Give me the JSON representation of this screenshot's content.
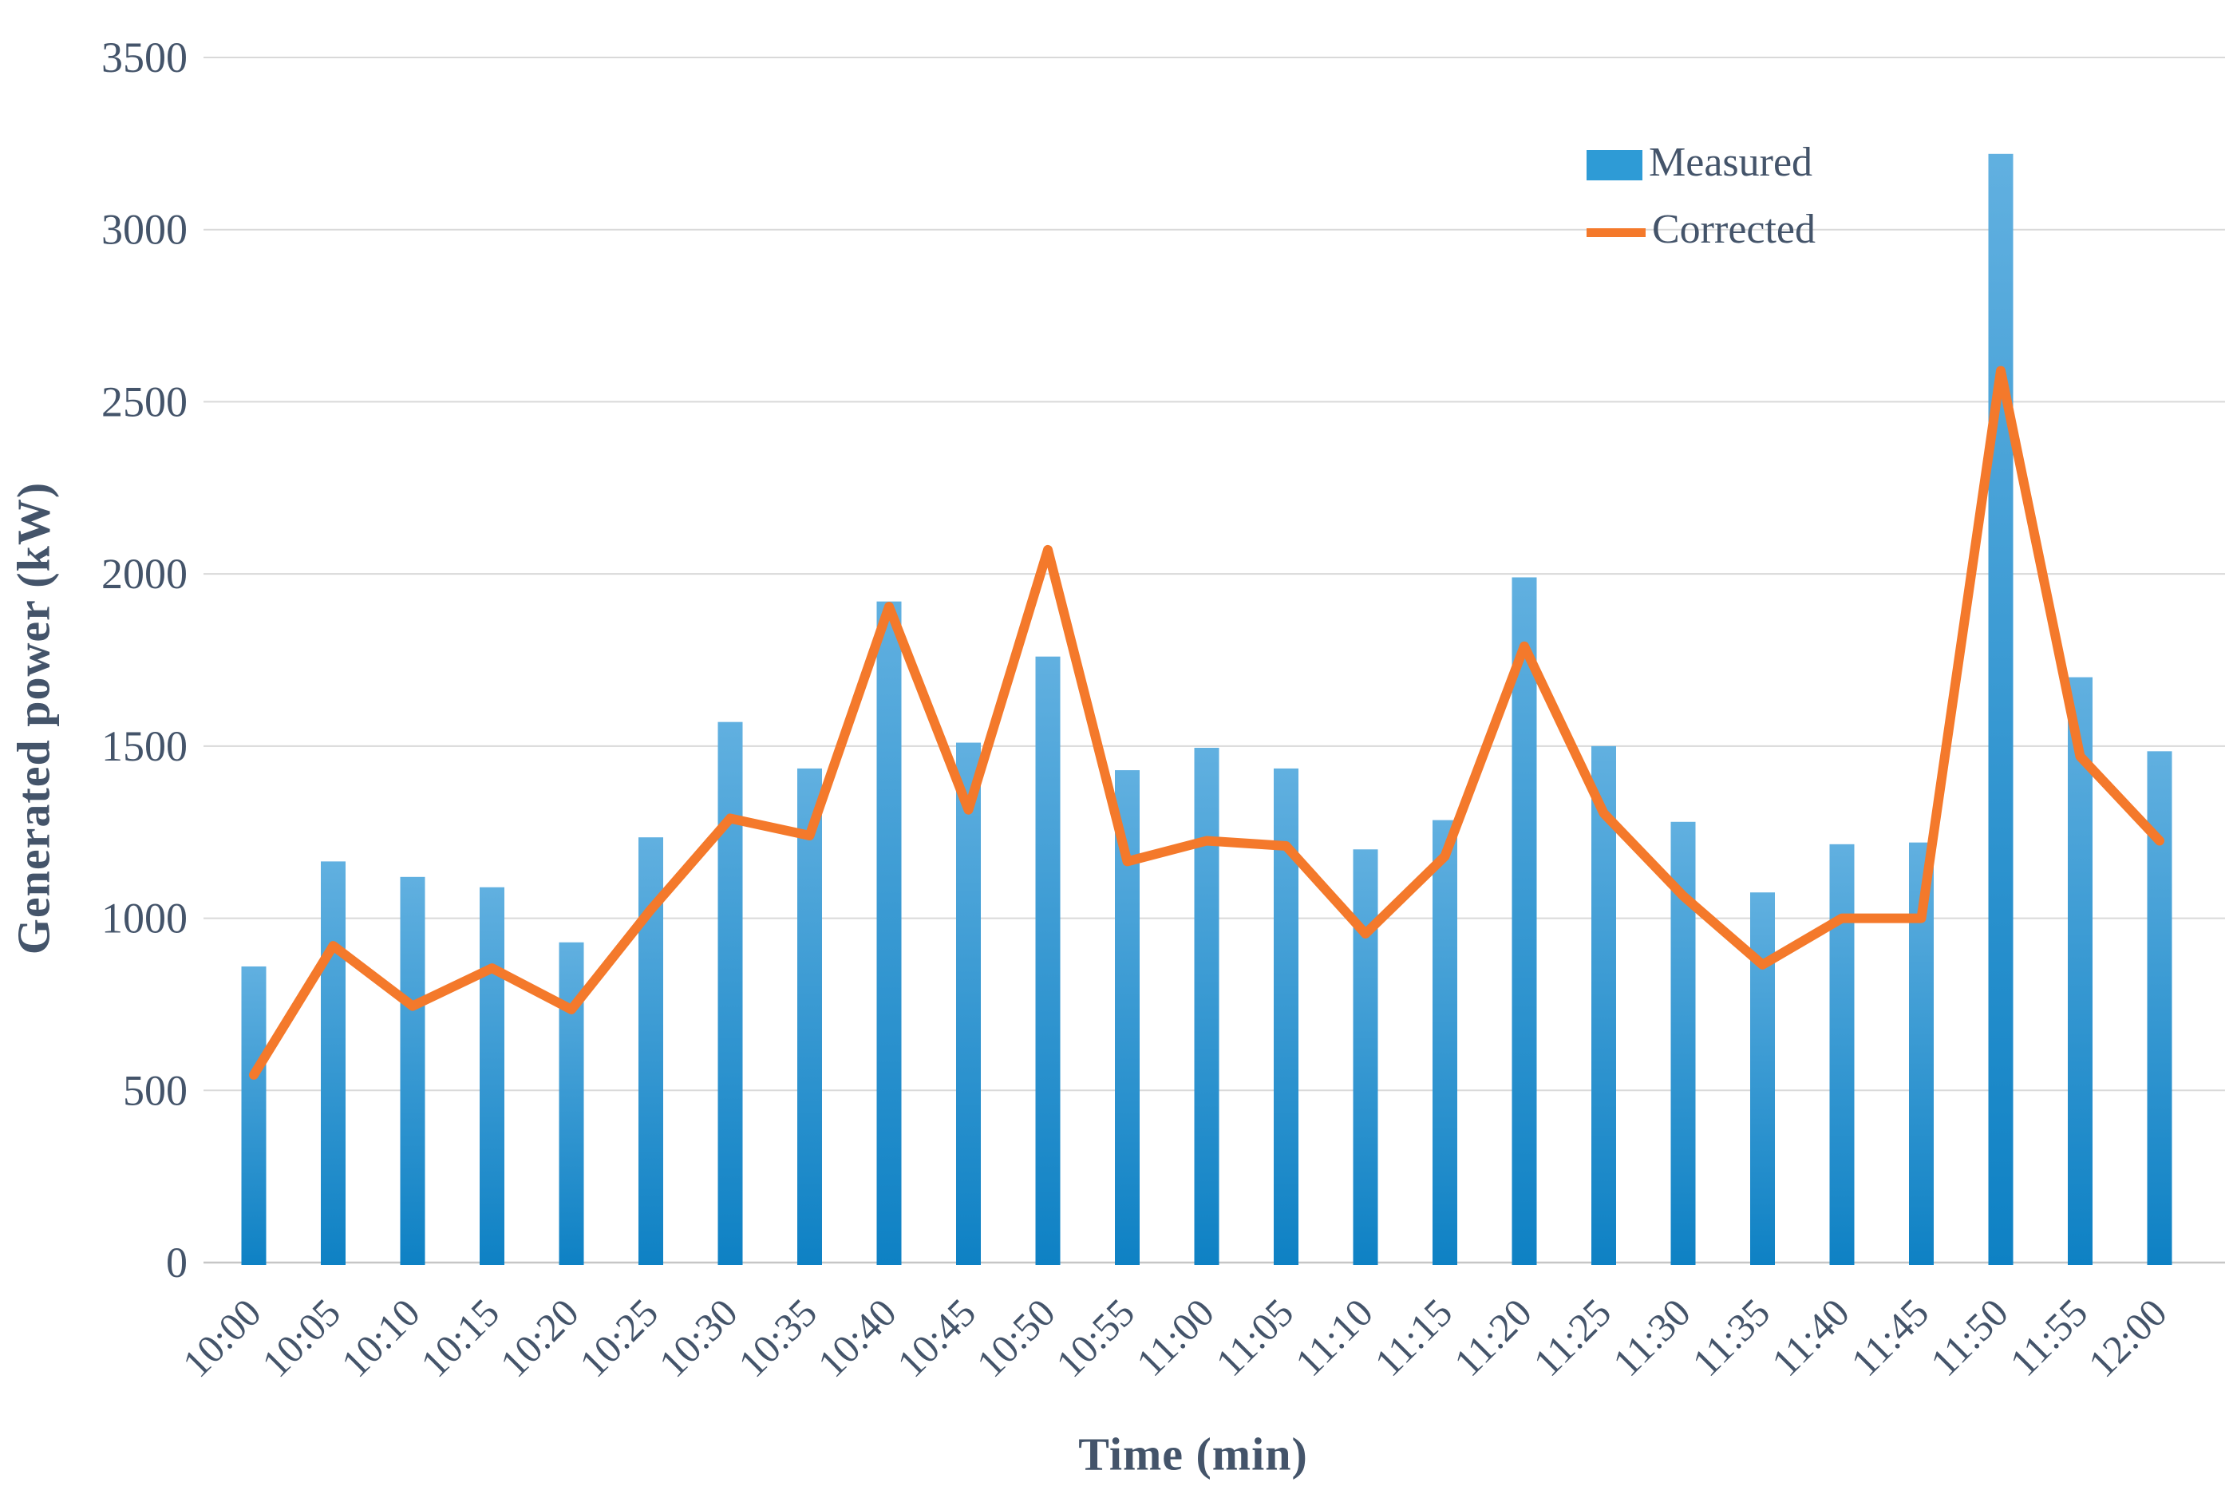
{
  "chart_data": {
    "type": "bar",
    "title": "",
    "xlabel": "Time (min)",
    "ylabel": "Generated power (kW)",
    "categories": [
      "10:00",
      "10:05",
      "10:10",
      "10:15",
      "10:20",
      "10:25",
      "10:30",
      "10:35",
      "10:40",
      "10:45",
      "10:50",
      "10:55",
      "11:00",
      "11:05",
      "11:10",
      "11:15",
      "11:20",
      "11:25",
      "11:30",
      "11:35",
      "11:40",
      "11:45",
      "11:50",
      "11:55",
      "12:00"
    ],
    "series": [
      {
        "name": "Measured",
        "kind": "bar",
        "color": "#2E9BD6",
        "bar_gradient_top": "#61B0E0",
        "bar_gradient_bottom": "#0E81C4",
        "values": [
          860,
          1165,
          1120,
          1090,
          930,
          1235,
          1570,
          1435,
          1920,
          1510,
          1760,
          1430,
          1495,
          1435,
          1200,
          1285,
          1990,
          1500,
          1280,
          1075,
          1215,
          1220,
          3220,
          1700,
          1485
        ]
      },
      {
        "name": "Corrected",
        "kind": "line",
        "color": "#F4792B",
        "values": [
          545,
          920,
          745,
          855,
          735,
          1025,
          1290,
          1240,
          1905,
          1315,
          2070,
          1165,
          1225,
          1210,
          955,
          1180,
          1790,
          1305,
          1065,
          865,
          1000,
          1000,
          2590,
          1470,
          1225
        ]
      }
    ],
    "ylim": [
      0,
      3500
    ],
    "ytick_step": 500,
    "yticks": [
      "0",
      "500",
      "1000",
      "1500",
      "2000",
      "2500",
      "3000",
      "3500"
    ],
    "grid": true,
    "legend_position": "top-right",
    "axis_text_color": "#44546A",
    "gridline_color": "#D9D9D9",
    "axis_line_color": "#C6C6C6"
  }
}
